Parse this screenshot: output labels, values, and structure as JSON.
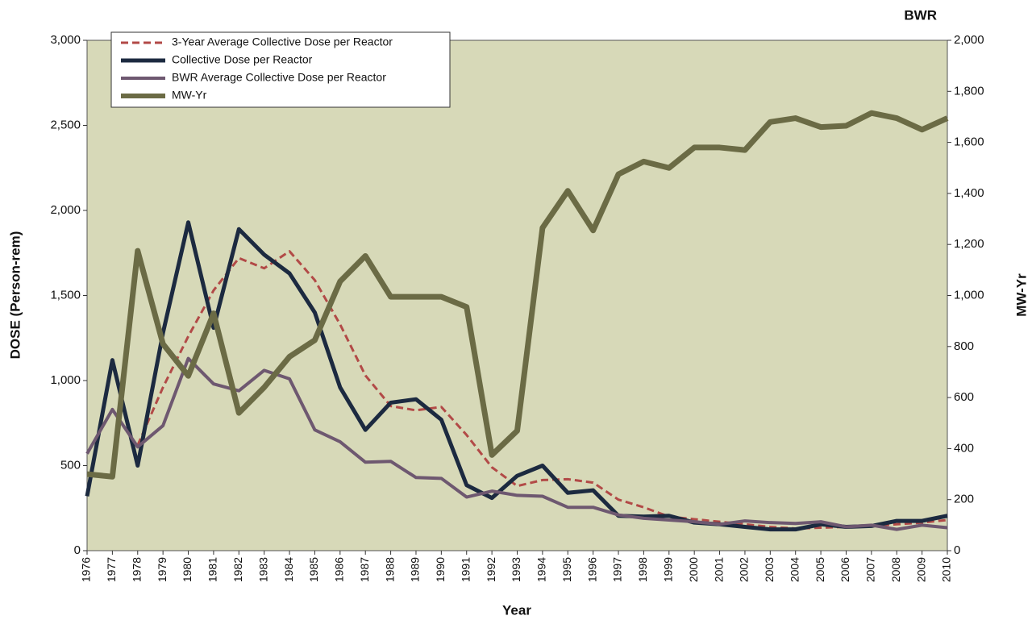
{
  "chart_data": {
    "type": "line",
    "title": "BWR",
    "x_label": "Year",
    "y_label": "DOSE (Person-rem)",
    "y2_label": "MW-Yr",
    "categories": [
      "1976",
      "1977",
      "1978",
      "1979",
      "1980",
      "1981",
      "1982",
      "1983",
      "1984",
      "1985",
      "1986",
      "1987",
      "1988",
      "1989",
      "1990",
      "1991",
      "1992",
      "1993",
      "1994",
      "1995",
      "1996",
      "1997",
      "1998",
      "1999",
      "2000",
      "2001",
      "2002",
      "2003",
      "2004",
      "2005",
      "2006",
      "2007",
      "2008",
      "2009",
      "2010"
    ],
    "ylim": [
      0,
      3000
    ],
    "yticks": [
      0,
      500,
      {
        "value": 1000,
        "label": "1,000"
      },
      {
        "value": 1500,
        "label": "1,500"
      },
      {
        "value": 2000,
        "label": "2,000"
      },
      {
        "value": 2500,
        "label": "2,500"
      },
      {
        "value": 3000,
        "label": "3,000"
      }
    ],
    "y2lim": [
      0,
      2000
    ],
    "y2ticks": [
      0,
      200,
      400,
      600,
      800,
      {
        "value": 1000,
        "label": "1,000"
      },
      {
        "value": 1200,
        "label": "1,200"
      },
      {
        "value": 1400,
        "label": "1,400"
      },
      {
        "value": 1600,
        "label": "1,600"
      },
      {
        "value": 1800,
        "label": "1,800"
      },
      {
        "value": 2000,
        "label": "2,000"
      }
    ],
    "grid": false,
    "legend": "top-left",
    "plot_background": "#d7d9b8",
    "series": [
      {
        "name": "3-Year Average Collective Dose per Reactor",
        "color": "#b24a47",
        "dashed": true,
        "width": 3,
        "values": [
          null,
          null,
          620,
          960,
          1260,
          1530,
          1720,
          1660,
          1760,
          1590,
          1330,
          1030,
          850,
          825,
          845,
          680,
          490,
          380,
          415,
          420,
          400,
          300,
          255,
          200,
          185,
          170,
          155,
          140,
          130,
          135,
          140,
          145,
          155,
          165,
          180
        ]
      },
      {
        "name": "Collective Dose per Reactor",
        "color": "#1c2a40",
        "dashed": false,
        "width": 5,
        "values": [
          320,
          1120,
          500,
          1280,
          1930,
          1310,
          1890,
          1740,
          1630,
          1400,
          960,
          710,
          870,
          890,
          770,
          385,
          310,
          440,
          500,
          340,
          355,
          205,
          200,
          205,
          165,
          155,
          140,
          125,
          125,
          155,
          140,
          145,
          175,
          175,
          205
        ]
      },
      {
        "name": "BWR Average Collective Dose per Reactor",
        "color": "#6e5870",
        "dashed": false,
        "width": 4,
        "values": [
          570,
          830,
          610,
          735,
          1130,
          980,
          940,
          1060,
          1010,
          710,
          640,
          520,
          525,
          430,
          425,
          315,
          350,
          325,
          320,
          255,
          255,
          210,
          190,
          180,
          170,
          155,
          175,
          165,
          160,
          170,
          140,
          150,
          125,
          150,
          135
        ]
      },
      {
        "name": "MW-Yr",
        "color": "#6b6b45",
        "dashed": false,
        "width": 7,
        "axis": "y2",
        "values": [
          300,
          290,
          1175,
          810,
          685,
          930,
          540,
          640,
          760,
          825,
          1055,
          1155,
          995,
          995,
          995,
          955,
          375,
          470,
          1265,
          1410,
          1255,
          1475,
          1525,
          1500,
          1580,
          1580,
          1570,
          1680,
          1695,
          1660,
          1665,
          1715,
          1695,
          1650,
          1695
        ]
      }
    ]
  }
}
